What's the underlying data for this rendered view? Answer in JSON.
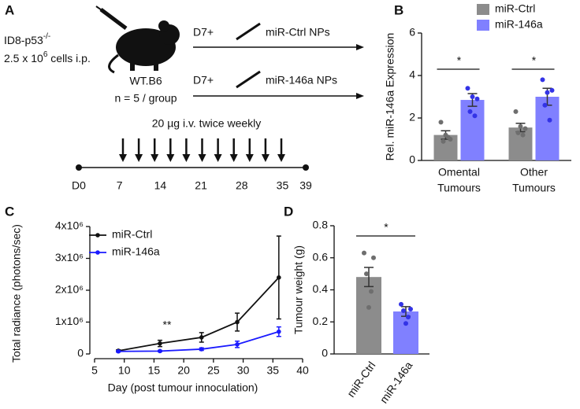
{
  "panel_labels": [
    "A",
    "B",
    "C",
    "D"
  ],
  "diagram": {
    "cell_line": "ID8-p53",
    "cell_line_sup": "-/-",
    "dose": "2.5 x 10",
    "dose_sup": "6",
    "dose_rest": " cells i.p.",
    "mouse": "WT.B6",
    "group_size": "n = 5 / group",
    "arms": [
      {
        "start": "D7+",
        "treatment": "miR-Ctrl NPs"
      },
      {
        "start": "D7+",
        "treatment": "miR-146a NPs"
      }
    ],
    "schedule": "20 µg i.v. twice weekly",
    "timeline": [
      {
        "value": 0,
        "label": "D0"
      },
      7,
      14,
      21,
      28,
      35,
      39
    ]
  },
  "chart_data": [
    {
      "type": "bar",
      "ylabel": "Rel. miR-146a Expression",
      "categories": [
        [
          "Omental",
          "Tumours"
        ],
        [
          "Other",
          "Tumours"
        ]
      ],
      "ylim": [
        0,
        6
      ],
      "yticks": [
        0,
        2,
        4,
        6
      ],
      "significance": [
        "*",
        "*"
      ],
      "series": [
        {
          "name": "miR-Ctrl",
          "color": "#8c8c8c",
          "point_color": "#6e6e6e",
          "values": [
            1.2,
            1.55
          ],
          "errors": [
            0.2,
            0.2
          ],
          "points": [
            [
              1.8,
              1.0,
              0.9,
              1.1,
              1.2
            ],
            [
              2.3,
              1.5,
              1.3,
              1.2,
              1.6
            ]
          ]
        },
        {
          "name": "miR-146a",
          "color": "#8080ff",
          "point_color": "#3333e6",
          "values": [
            2.85,
            3.0
          ],
          "errors": [
            0.3,
            0.4
          ],
          "points": [
            [
              3.4,
              2.9,
              2.3,
              2.1,
              3.0
            ],
            [
              3.8,
              3.3,
              2.6,
              1.9,
              3.2
            ]
          ]
        }
      ]
    },
    {
      "type": "line",
      "ylabel": "Total radiance (photons/sec)",
      "xlabel": "Day (post tumour innoculation)",
      "annotation": "**",
      "xlim": [
        5,
        40
      ],
      "xticks": [
        5,
        10,
        15,
        20,
        25,
        30,
        35,
        40
      ],
      "ylim": [
        0,
        4000000
      ],
      "yticks": [
        0,
        {
          "value": 1000000,
          "label": "1x10⁶"
        },
        {
          "value": 2000000,
          "label": "2x10⁶"
        },
        {
          "value": 3000000,
          "label": "3x10⁶"
        },
        {
          "value": 4000000,
          "label": "4x10⁶"
        }
      ],
      "series": [
        {
          "name": "miR-Ctrl",
          "color": "#111111",
          "x": [
            9,
            16,
            23,
            29,
            36
          ],
          "values": [
            100000,
            330000,
            520000,
            1000000,
            2400000
          ],
          "errors": [
            30000,
            100000,
            150000,
            280000,
            1300000
          ]
        },
        {
          "name": "miR-146a",
          "color": "#1a1aff",
          "x": [
            9,
            16,
            23,
            29,
            36
          ],
          "values": [
            80000,
            90000,
            150000,
            300000,
            700000
          ],
          "errors": [
            20000,
            20000,
            40000,
            100000,
            150000
          ]
        }
      ]
    },
    {
      "type": "dotbar",
      "ylabel": "Tumour weight (g)",
      "categories": [
        "miR-Ctrl",
        "miR-146a"
      ],
      "significance": "*",
      "ylim": [
        0,
        0.8
      ],
      "yticks": [
        0,
        0.2,
        0.4,
        0.6,
        0.8
      ],
      "colors": [
        "#8c8c8c",
        "#8080ff"
      ],
      "point_colors": [
        "#6e6e6e",
        "#3333e6"
      ],
      "values": [
        0.48,
        0.265
      ],
      "errors": [
        0.06,
        0.03
      ],
      "points": [
        [
          0.63,
          0.6,
          0.5,
          0.39,
          0.29
        ],
        [
          0.31,
          0.28,
          0.27,
          0.23,
          0.19
        ]
      ]
    }
  ]
}
